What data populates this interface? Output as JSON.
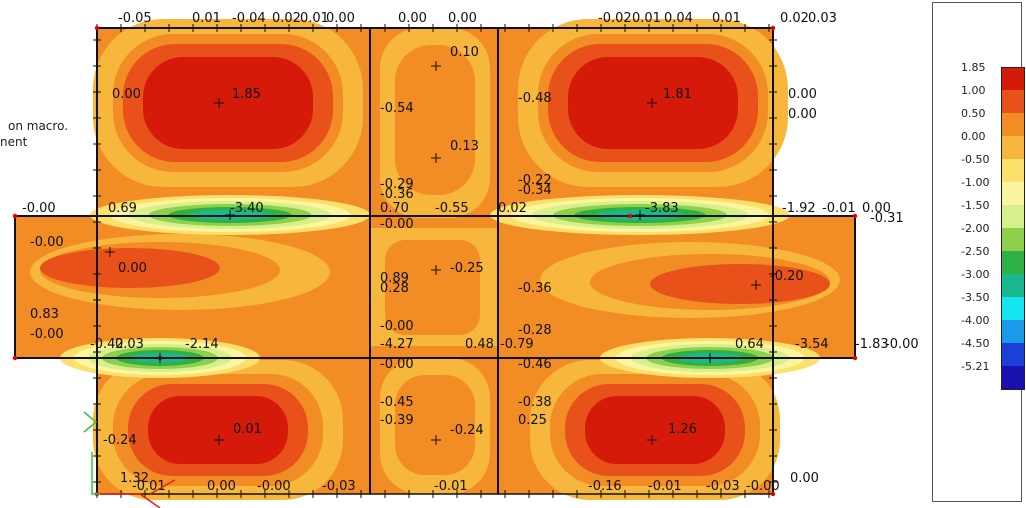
{
  "side_text": {
    "line1": "on macro.",
    "line2": "nent"
  },
  "chart_data": {
    "type": "heatmap",
    "title": "",
    "colors": {
      "1.85": "#d61a0a",
      "1.00": "#e8521a",
      "0.50": "#f28c24",
      "0.00": "#f7b63c",
      "-0.50": "#fbe06a",
      "-1.00": "#fbf5a0",
      "-1.50": "#d7f08c",
      "-2.00": "#8fd04a",
      "-2.50": "#2fb044",
      "-3.00": "#1ab890",
      "-3.50": "#16e6f0",
      "-4.00": "#1a9ae8",
      "-4.50": "#1a40d8",
      "-5.21": "#1a10b0"
    },
    "legend": {
      "levels": [
        "1.85",
        "1.00",
        "0.50",
        "0.00",
        "-0.50",
        "-1.00",
        "-1.50",
        "-2.00",
        "-2.50",
        "-3.00",
        "-3.50",
        "-4.00",
        "-4.50",
        "-5.21"
      ]
    },
    "labels": [
      {
        "text": "-0.05",
        "col": "top"
      },
      {
        "text": "0.01",
        "col": "top"
      },
      {
        "text": "-0.04",
        "col": "top"
      },
      {
        "text": "0.02",
        "col": "top"
      },
      {
        "text": "0.01",
        "col": "top"
      },
      {
        "text": "0.00",
        "col": "top"
      },
      {
        "text": "0.00",
        "col": "top"
      },
      {
        "text": "0.00",
        "col": "top"
      },
      {
        "text": "-0.02",
        "col": "top"
      },
      {
        "text": "0.01",
        "col": "top"
      },
      {
        "text": "0.04",
        "col": "top"
      },
      {
        "text": "0.01",
        "col": "top"
      },
      {
        "text": "0.02",
        "col": "top"
      },
      {
        "text": "0.03",
        "col": "top"
      },
      {
        "text": "0.10"
      },
      {
        "text": "0.00"
      },
      {
        "text": "1.85"
      },
      {
        "text": "-0.54"
      },
      {
        "text": "-0.48"
      },
      {
        "text": "1.81"
      },
      {
        "text": "0.00"
      },
      {
        "text": "0.00"
      },
      {
        "text": "0.13"
      },
      {
        "text": "-0.29"
      },
      {
        "text": "-0.36"
      },
      {
        "text": "-0.22"
      },
      {
        "text": "-0.34"
      },
      {
        "text": "-0.00"
      },
      {
        "text": "0.69"
      },
      {
        "text": "-3.40"
      },
      {
        "text": "0.70"
      },
      {
        "text": "-0.55"
      },
      {
        "text": "0.02"
      },
      {
        "text": "-3.83"
      },
      {
        "text": "-1.92"
      },
      {
        "text": "-0.01"
      },
      {
        "text": "0.00"
      },
      {
        "text": "-0.00"
      },
      {
        "text": "-0.31"
      },
      {
        "text": "-0.00"
      },
      {
        "text": "0.00"
      },
      {
        "text": "0.89"
      },
      {
        "text": "-0.25"
      },
      {
        "text": "0.28"
      },
      {
        "text": "-0.36"
      },
      {
        "text": "-0.20"
      },
      {
        "text": "0.83"
      },
      {
        "text": "-0.00"
      },
      {
        "text": "-0.00"
      },
      {
        "text": "-0.28"
      },
      {
        "text": "-0.42"
      },
      {
        "text": "0.03"
      },
      {
        "text": "-2.14"
      },
      {
        "text": "-4.27"
      },
      {
        "text": "0.48"
      },
      {
        "text": "-0.79"
      },
      {
        "text": "0.64"
      },
      {
        "text": "-3.54"
      },
      {
        "text": "-1.83"
      },
      {
        "text": "-0.00"
      },
      {
        "text": "-0.00"
      },
      {
        "text": "-0.46"
      },
      {
        "text": "-0.45"
      },
      {
        "text": "-0.38"
      },
      {
        "text": "-0.39"
      },
      {
        "text": "-0.24"
      },
      {
        "text": "0.25"
      },
      {
        "text": "-0.24"
      },
      {
        "text": "0.01"
      },
      {
        "text": "1.26"
      },
      {
        "text": "1.32"
      },
      {
        "text": "-0.01"
      },
      {
        "text": "0.00"
      },
      {
        "text": "-0.00"
      },
      {
        "text": "-0.03"
      },
      {
        "text": "-0.01"
      },
      {
        "text": "-0.16"
      },
      {
        "text": "-0.01"
      },
      {
        "text": "-0.03"
      },
      {
        "text": "-0.00"
      },
      {
        "text": "0.00"
      },
      {
        "text": "-0.01"
      }
    ]
  }
}
